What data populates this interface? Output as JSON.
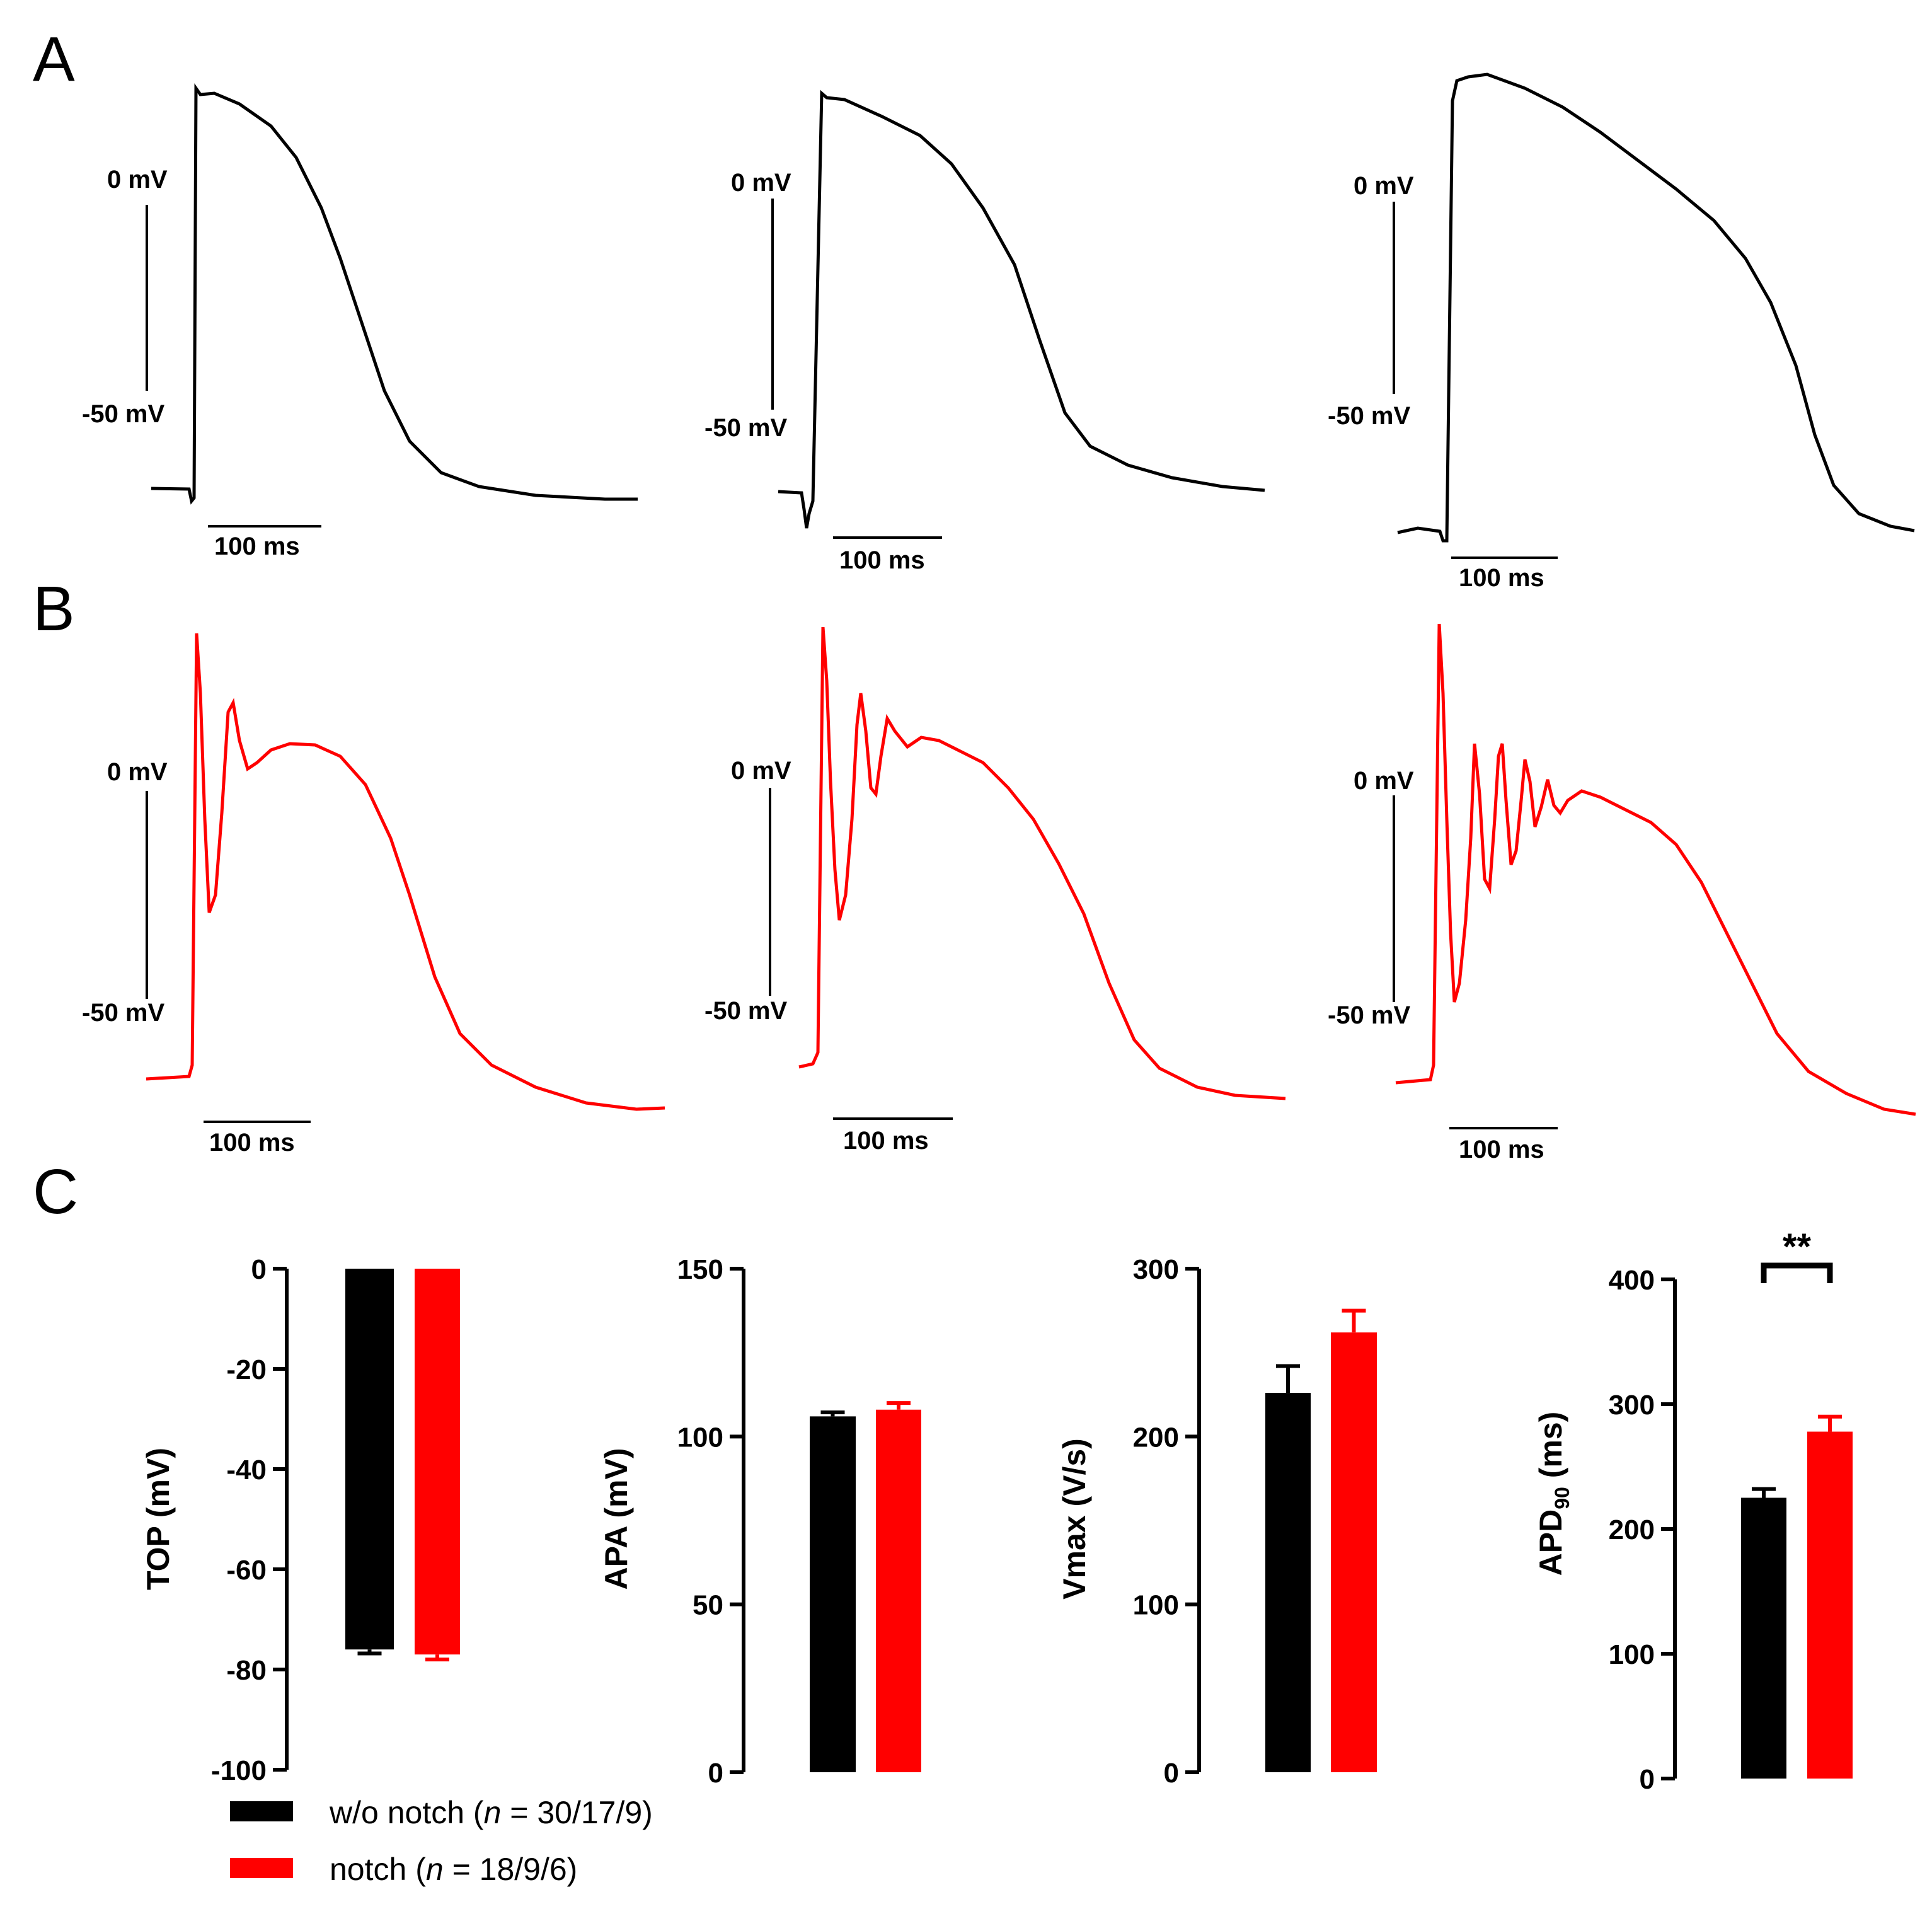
{
  "panels": {
    "A": "A",
    "B": "B",
    "C": "C"
  },
  "traces": {
    "A": [
      {
        "name": "trace-a1",
        "voltage_scale": [
          "0 mV",
          "-50 mV"
        ],
        "time_scale": "100 ms",
        "color": "#000000"
      },
      {
        "name": "trace-a2",
        "voltage_scale": [
          "0 mV",
          "-50 mV"
        ],
        "time_scale": "100 ms",
        "color": "#000000"
      },
      {
        "name": "trace-a3",
        "voltage_scale": [
          "0 mV",
          "-50 mV"
        ],
        "time_scale": "100 ms",
        "color": "#000000"
      }
    ],
    "B": [
      {
        "name": "trace-b1",
        "voltage_scale": [
          "0 mV",
          "-50 mV"
        ],
        "time_scale": "100 ms",
        "color": "#ff0000"
      },
      {
        "name": "trace-b2",
        "voltage_scale": [
          "0 mV",
          "-50 mV"
        ],
        "time_scale": "100 ms",
        "color": "#ff0000"
      },
      {
        "name": "trace-b3",
        "voltage_scale": [
          "0 mV",
          "-50 mV"
        ],
        "time_scale": "100 ms",
        "color": "#ff0000"
      }
    ]
  },
  "legend": {
    "items": [
      {
        "label_pre": "w/o notch (",
        "label_n": "n",
        "label_post": " = 30/17/9)",
        "color": "#000000"
      },
      {
        "label_pre": "notch (",
        "label_n": "n",
        "label_post": " = 18/9/6)",
        "color": "#ff0000"
      }
    ]
  },
  "chart_data": [
    {
      "type": "bar",
      "name": "top",
      "ylabel": "TOP (mV)",
      "ylim": [
        -100,
        0
      ],
      "ticks": [
        0,
        -20,
        -40,
        -60,
        -80,
        -100
      ],
      "tick_labels": [
        "0",
        "-20",
        "-40",
        "-60",
        "-80",
        "-100"
      ],
      "categories": [
        "w/o notch",
        "notch"
      ],
      "values": [
        -76,
        -77
      ],
      "errors": [
        0.8,
        1.0
      ],
      "colors": [
        "#000000",
        "#ff0000"
      ],
      "significance": ""
    },
    {
      "type": "bar",
      "name": "apa",
      "ylabel": "APA (mV)",
      "ylim": [
        0,
        150
      ],
      "ticks": [
        0,
        50,
        100,
        150
      ],
      "tick_labels": [
        "0",
        "50",
        "100",
        "150"
      ],
      "categories": [
        "w/o notch",
        "notch"
      ],
      "values": [
        106,
        108
      ],
      "errors": [
        1.2,
        2.0
      ],
      "colors": [
        "#000000",
        "#ff0000"
      ],
      "significance": ""
    },
    {
      "type": "bar",
      "name": "vmax",
      "ylabel": "Vmax (V/s)",
      "ylim": [
        0,
        300
      ],
      "ticks": [
        0,
        100,
        200,
        300
      ],
      "tick_labels": [
        "0",
        "100",
        "200",
        "300"
      ],
      "categories": [
        "w/o notch",
        "notch"
      ],
      "values": [
        226,
        262
      ],
      "errors": [
        16,
        13
      ],
      "colors": [
        "#000000",
        "#ff0000"
      ],
      "significance": ""
    },
    {
      "type": "bar",
      "name": "apd90",
      "ylabel_main": "APD",
      "ylabel_sub": "90",
      "ylabel_unit": " (ms)",
      "ylim": [
        0,
        400
      ],
      "ticks": [
        0,
        100,
        200,
        300,
        400
      ],
      "tick_labels": [
        "0",
        "100",
        "200",
        "300",
        "400"
      ],
      "categories": [
        "w/o notch",
        "notch"
      ],
      "values": [
        225,
        278
      ],
      "errors": [
        7,
        12
      ],
      "colors": [
        "#000000",
        "#ff0000"
      ],
      "significance": "**"
    }
  ]
}
